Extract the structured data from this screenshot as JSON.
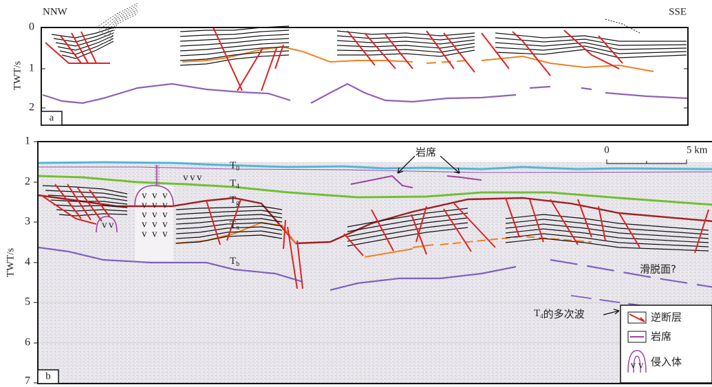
{
  "panel_a": {
    "label": "a",
    "left_end": "NNW",
    "right_end": "SSE",
    "axis_title": "TWT/s",
    "yticks": [
      "0",
      "1",
      "2"
    ]
  },
  "panel_b": {
    "label": "b",
    "axis_title": "TWT/s",
    "yticks": [
      "1",
      "2",
      "3",
      "4",
      "5",
      "6",
      "7"
    ],
    "horizons": [
      {
        "main": "T",
        "sub": "0"
      },
      {
        "main": "T",
        "sub": "4"
      },
      {
        "main": "T",
        "sub": "g"
      },
      {
        "main": "T",
        "sub": "x"
      },
      {
        "main": "T",
        "sub": "b"
      }
    ],
    "annotations": {
      "sill": "岩席",
      "detachment": "滑脱面?",
      "multiple": {
        "main": "T",
        "sub": "4",
        "rest": "的多次波"
      }
    },
    "scale_bar": {
      "start": "0",
      "end": "5 km"
    },
    "legend": [
      "逆断层",
      "岩席",
      "侵入体"
    ]
  }
}
